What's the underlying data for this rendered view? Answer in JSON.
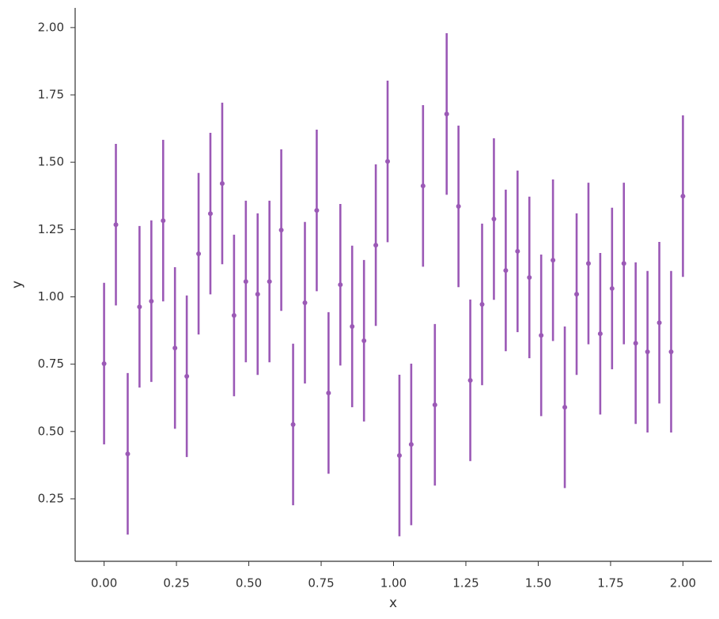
{
  "chart_data": {
    "type": "errorbar",
    "xlabel": "x",
    "ylabel": "y",
    "color": "#9b59b6",
    "xlim": [
      -0.1,
      2.1
    ],
    "ylim": [
      0.018,
      2.073
    ],
    "xticks": [
      {
        "value": 0,
        "label": "0.00"
      },
      {
        "value": 0.25,
        "label": "0.25"
      },
      {
        "value": 0.5,
        "label": "0.50"
      },
      {
        "value": 0.75,
        "label": "0.75"
      },
      {
        "value": 1,
        "label": "1.00"
      },
      {
        "value": 1.25,
        "label": "1.25"
      },
      {
        "value": 1.5,
        "label": "1.50"
      },
      {
        "value": 1.75,
        "label": "1.75"
      },
      {
        "value": 2,
        "label": "2.00"
      }
    ],
    "yticks": [
      {
        "value": 0.25,
        "label": "0.25"
      },
      {
        "value": 0.5,
        "label": "0.50"
      },
      {
        "value": 0.75,
        "label": "0.75"
      },
      {
        "value": 1,
        "label": "1.00"
      },
      {
        "value": 1.25,
        "label": "1.25"
      },
      {
        "value": 1.5,
        "label": "1.50"
      },
      {
        "value": 1.75,
        "label": "1.75"
      },
      {
        "value": 2,
        "label": "2.00"
      }
    ],
    "x": [
      0,
      0.0408,
      0.0816,
      0.1224,
      0.1633,
      0.2041,
      0.2449,
      0.2857,
      0.3265,
      0.3673,
      0.4082,
      0.449,
      0.4898,
      0.5306,
      0.5714,
      0.6122,
      0.6531,
      0.6939,
      0.7347,
      0.7755,
      0.8163,
      0.8571,
      0.898,
      0.9388,
      0.9796,
      1.0204,
      1.0612,
      1.102,
      1.1429,
      1.1837,
      1.2245,
      1.2653,
      1.3061,
      1.3469,
      1.3878,
      1.4286,
      1.4694,
      1.5102,
      1.551,
      1.5918,
      1.6327,
      1.6735,
      1.7143,
      1.7551,
      1.7959,
      1.8367,
      1.8776,
      1.9184,
      1.9592,
      2
    ],
    "y": [
      0.752,
      1.268,
      0.417,
      0.963,
      0.984,
      1.283,
      0.81,
      0.705,
      1.16,
      1.309,
      1.421,
      0.931,
      1.057,
      1.01,
      1.057,
      1.248,
      0.526,
      0.978,
      1.321,
      0.643,
      1.045,
      0.89,
      0.837,
      1.192,
      1.503,
      0.411,
      0.452,
      1.412,
      0.599,
      1.679,
      1.336,
      0.69,
      0.972,
      1.289,
      1.098,
      1.169,
      1.072,
      0.857,
      1.136,
      0.59,
      1.01,
      1.124,
      0.863,
      1.031,
      1.124,
      0.828,
      0.796,
      0.904,
      0.796,
      1.374
    ],
    "errors": [
      0.3,
      0.3,
      0.3,
      0.3,
      0.3,
      0.3,
      0.3,
      0.3,
      0.3,
      0.3,
      0.3,
      0.3,
      0.3,
      0.3,
      0.3,
      0.3,
      0.3,
      0.3,
      0.3,
      0.3,
      0.3,
      0.3,
      0.3,
      0.3,
      0.3,
      0.3,
      0.3,
      0.3,
      0.3,
      0.3,
      0.3,
      0.3,
      0.3,
      0.3,
      0.3,
      0.3,
      0.3,
      0.3,
      0.3,
      0.3,
      0.3,
      0.3,
      0.3,
      0.3,
      0.3,
      0.3,
      0.3,
      0.3,
      0.3,
      0.3
    ]
  }
}
